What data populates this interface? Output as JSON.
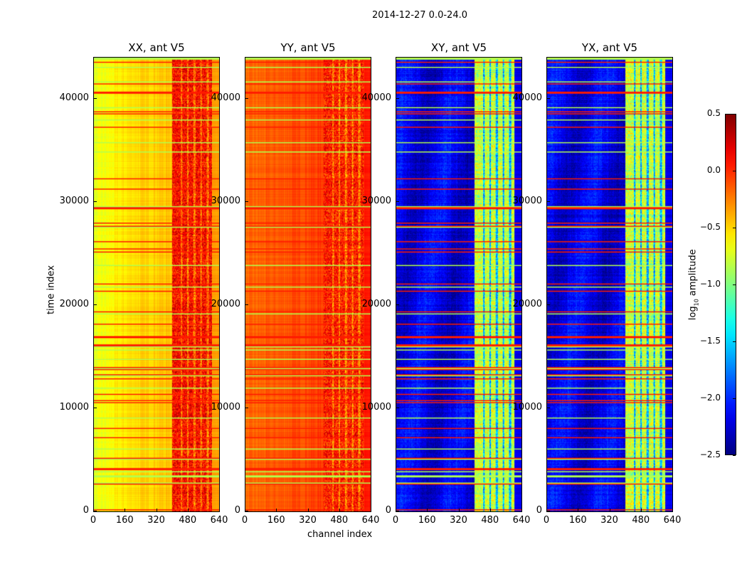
{
  "figure": {
    "suptitle": "2014-12-27 0.0-24.0"
  },
  "chart_data": {
    "type": "heatmap",
    "title": "2014-12-27 0.0-24.0",
    "xlabel": "channel index",
    "ylabel": "time index",
    "xlim": [
      0,
      640
    ],
    "ylim": [
      0,
      44000
    ],
    "xticks": [
      "0",
      "160",
      "320",
      "480",
      "640"
    ],
    "xtick_values": [
      0,
      160,
      320,
      480,
      640
    ],
    "yticks": [
      "0",
      "10000",
      "20000",
      "30000",
      "40000"
    ],
    "ytick_values": [
      0,
      10000,
      20000,
      30000,
      40000
    ],
    "colormap": "jet",
    "colorbar": {
      "label": "log",
      "label_sub": "10",
      "label_rest": " amplitude",
      "range": [
        -2.5,
        0.5
      ],
      "ticks": [
        "0.5",
        "0.0",
        "−0.5",
        "−1.0",
        "−1.5",
        "−2.0",
        "−2.5"
      ],
      "tick_values": [
        0.5,
        0.0,
        -0.5,
        -1.0,
        -1.5,
        -2.0,
        -2.5
      ]
    },
    "panels": [
      {
        "title": "XX, ant V5",
        "background_level": -0.6,
        "band_level": 0.1,
        "band_channels": [
          400,
          600
        ]
      },
      {
        "title": "YY, ant V5",
        "background_level": -0.2,
        "band_level": 0.05,
        "band_channels": [
          400,
          600
        ]
      },
      {
        "title": "XY, ant V5",
        "background_level": -2.2,
        "band_level": -0.8,
        "band_channels": [
          400,
          600
        ]
      },
      {
        "title": "YX, ant V5",
        "background_level": -2.2,
        "band_level": -0.8,
        "band_channels": [
          400,
          600
        ]
      }
    ]
  }
}
